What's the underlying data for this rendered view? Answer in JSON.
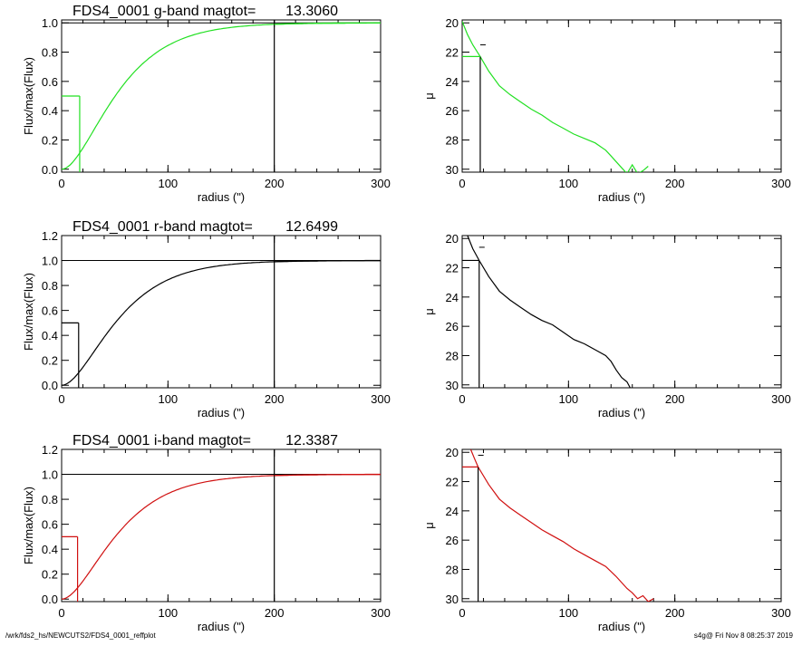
{
  "footer": {
    "left": "/wrk/fds2_hs/NEWCUTS2/FDS4_0001_reffplot",
    "right": "s4g@  Fri Nov  8 08:25:37 2019"
  },
  "colors": {
    "g": "#22e022",
    "r": "#000000",
    "i": "#d01010",
    "axes": "#000000"
  },
  "chart_data": [
    {
      "type": "line",
      "band": "g",
      "color": "#22e022",
      "title_text": "FDS4_0001 g-band  magtot=",
      "title_value": "13.3060",
      "xlabel": "radius (\")",
      "ylabel": "Flux/max(Flux)",
      "xlim": [
        0,
        300
      ],
      "ylim": [
        -0.02,
        1.02
      ],
      "xticks": [
        "0",
        "100",
        "200",
        "300"
      ],
      "yticks": [
        "0.0",
        "0.2",
        "0.4",
        "0.6",
        "0.8",
        "1.0"
      ],
      "growth_scale": 30,
      "r_eff": 17,
      "half_flux": 0.5,
      "r_max": 200
    },
    {
      "type": "line",
      "band": "g",
      "color": "#22e022",
      "xlabel": "radius (\")",
      "ylabel": "μ",
      "xlim": [
        0,
        300
      ],
      "ylim": [
        30.2,
        19.8
      ],
      "xticks": [
        "0",
        "100",
        "200",
        "300"
      ],
      "yticks": [
        "20",
        "22",
        "24",
        "26",
        "28",
        "30"
      ],
      "r_eff": 17,
      "mu_eff": 22.3,
      "mu_mark": 21.5,
      "x": [
        0,
        5,
        10,
        17,
        25,
        35,
        45,
        55,
        65,
        75,
        85,
        95,
        105,
        115,
        125,
        135,
        140,
        145,
        150,
        155,
        160,
        165,
        170,
        175
      ],
      "y": [
        19.9,
        20.8,
        21.5,
        22.3,
        23.3,
        24.3,
        24.9,
        25.4,
        25.9,
        26.3,
        26.8,
        27.2,
        27.6,
        27.9,
        28.2,
        28.7,
        29.1,
        29.5,
        29.9,
        30.3,
        29.7,
        30.3,
        30.1,
        29.8
      ]
    },
    {
      "type": "line",
      "band": "r",
      "color": "#000000",
      "title_text": "FDS4_0001 r-band  magtot=",
      "title_value": "12.6499",
      "xlabel": "radius (\")",
      "ylabel": "Flux/max(Flux)",
      "xlim": [
        0,
        300
      ],
      "ylim": [
        -0.02,
        1.2
      ],
      "xticks": [
        "0",
        "100",
        "200",
        "300"
      ],
      "yticks": [
        "0.0",
        "0.2",
        "0.4",
        "0.6",
        "0.8",
        "1.0",
        "1.2"
      ],
      "growth_scale": 30,
      "r_eff": 16,
      "half_flux": 0.5,
      "r_max": 200
    },
    {
      "type": "line",
      "band": "r",
      "color": "#000000",
      "xlabel": "radius (\")",
      "ylabel": "μ",
      "xlim": [
        0,
        300
      ],
      "ylim": [
        30.2,
        19.8
      ],
      "xticks": [
        "0",
        "100",
        "200",
        "300"
      ],
      "yticks": [
        "20",
        "22",
        "24",
        "26",
        "28",
        "30"
      ],
      "r_eff": 16,
      "mu_eff": 21.5,
      "mu_mark": 20.6,
      "x": [
        5,
        10,
        16,
        25,
        35,
        45,
        55,
        65,
        75,
        85,
        95,
        105,
        115,
        125,
        135,
        140,
        145,
        150,
        155,
        158
      ],
      "y": [
        19.8,
        20.7,
        21.5,
        22.6,
        23.6,
        24.2,
        24.7,
        25.2,
        25.6,
        25.9,
        26.4,
        26.9,
        27.2,
        27.6,
        28.0,
        28.4,
        29.0,
        29.5,
        29.8,
        30.2
      ]
    },
    {
      "type": "line",
      "band": "i",
      "color": "#d01010",
      "title_text": "FDS4_0001 i-band  magtot=",
      "title_value": "12.3387",
      "xlabel": "radius (\")",
      "ylabel": "Flux/max(Flux)",
      "xlim": [
        0,
        300
      ],
      "ylim": [
        -0.02,
        1.2
      ],
      "xticks": [
        "0",
        "100",
        "200",
        "300"
      ],
      "yticks": [
        "0.0",
        "0.2",
        "0.4",
        "0.6",
        "0.8",
        "1.0",
        "1.2"
      ],
      "growth_scale": 30,
      "r_eff": 15,
      "half_flux": 0.5,
      "r_max": 200
    },
    {
      "type": "line",
      "band": "i",
      "color": "#d01010",
      "xlabel": "radius (\")",
      "ylabel": "μ",
      "xlim": [
        0,
        300
      ],
      "ylim": [
        30.2,
        19.8
      ],
      "xticks": [
        "0",
        "100",
        "200",
        "300"
      ],
      "yticks": [
        "20",
        "22",
        "24",
        "26",
        "28",
        "30"
      ],
      "r_eff": 15,
      "mu_eff": 21.0,
      "mu_mark": 20.2,
      "x": [
        8,
        12,
        15,
        25,
        35,
        45,
        55,
        65,
        75,
        85,
        95,
        105,
        115,
        125,
        135,
        145,
        150,
        155,
        160,
        165,
        170,
        175,
        180
      ],
      "y": [
        19.8,
        20.5,
        21.0,
        22.2,
        23.2,
        23.8,
        24.3,
        24.8,
        25.3,
        25.7,
        26.1,
        26.6,
        27.0,
        27.4,
        27.8,
        28.5,
        28.9,
        29.3,
        29.6,
        30.0,
        29.8,
        30.2,
        30.0
      ]
    }
  ]
}
